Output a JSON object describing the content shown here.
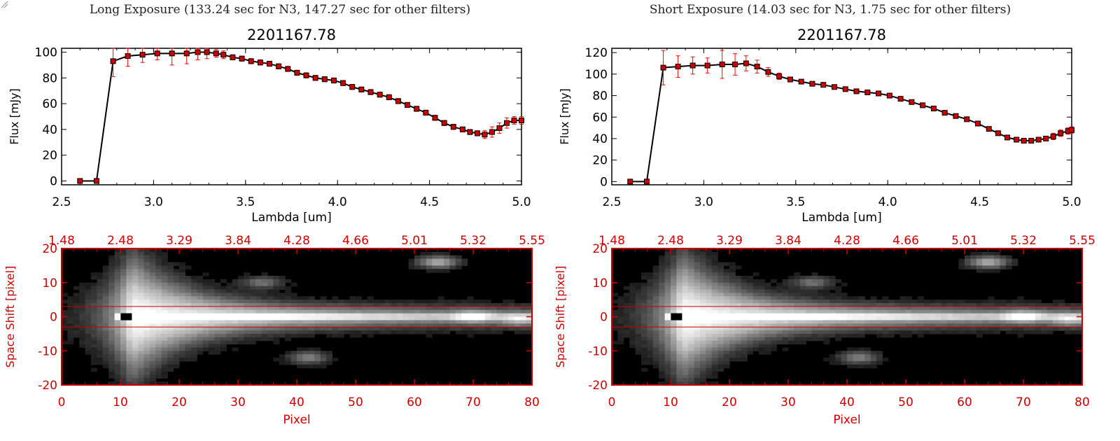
{
  "panels": [
    {
      "heading": "Long Exposure (133.24 sec for N3, 147.27 sec for other filters)",
      "plot_title": "2201167.78",
      "spectrum": {
        "type": "line",
        "xlabel": "Lambda [um]",
        "ylabel": "Flux [mJy]",
        "xlim": [
          2.5,
          5.0
        ],
        "ylim": [
          -3,
          103
        ],
        "xticks": [
          "2.5",
          "3.0",
          "3.5",
          "4.0",
          "4.5",
          "5.0"
        ],
        "yticks": [
          "0",
          "20",
          "40",
          "60",
          "80",
          "100"
        ],
        "ytick_values": [
          0,
          20,
          40,
          60,
          80,
          100
        ],
        "series": [
          {
            "color": "#000000",
            "marker_color": "#cc0000",
            "errorbar_color": "#ff0000",
            "x": [
              2.6,
              2.69,
              2.78,
              2.86,
              2.94,
              3.02,
              3.1,
              3.18,
              3.24,
              3.29,
              3.34,
              3.38,
              3.43,
              3.48,
              3.53,
              3.58,
              3.63,
              3.68,
              3.73,
              3.78,
              3.83,
              3.88,
              3.93,
              3.98,
              4.03,
              4.08,
              4.13,
              4.18,
              4.23,
              4.28,
              4.33,
              4.38,
              4.43,
              4.48,
              4.53,
              4.58,
              4.63,
              4.68,
              4.72,
              4.76,
              4.8,
              4.84,
              4.88,
              4.92,
              4.96,
              5.0
            ],
            "y": [
              0,
              0,
              93,
              97,
              98,
              99,
              99,
              99,
              100,
              100,
              99,
              98,
              96,
              95,
              93,
              92,
              91,
              89,
              87,
              84,
              82,
              80,
              79,
              78,
              76,
              73,
              71,
              69,
              67,
              65,
              62,
              59,
              56,
              53,
              49,
              45,
              42,
              40,
              38,
              37,
              36,
              38,
              41,
              45,
              47,
              47
            ],
            "yerr": [
              0,
              0,
              12,
              8,
              6,
              5,
              9,
              8,
              6,
              5,
              3,
              3,
              2,
              2,
              2,
              2,
              2,
              2,
              2,
              2,
              2,
              2,
              2,
              2,
              2,
              2,
              2,
              2,
              2,
              2,
              2,
              2,
              2,
              2,
              2,
              2,
              2,
              2,
              2,
              2,
              3,
              4,
              4,
              4,
              3,
              3
            ]
          }
        ]
      },
      "image": {
        "type": "heatmap",
        "xlabel": "Pixel",
        "ylabel": "Space Shift [pixel]",
        "xlim": [
          0,
          80
        ],
        "ylim": [
          -20,
          20
        ],
        "xticks": [
          "0",
          "10",
          "20",
          "30",
          "40",
          "50",
          "60",
          "70",
          "80"
        ],
        "yticks": [
          "-20",
          "-10",
          "0",
          "10",
          "20"
        ],
        "top_ticks": [
          "1.48",
          "2.48",
          "3.29",
          "3.84",
          "4.28",
          "4.66",
          "5.01",
          "5.32",
          "5.55"
        ],
        "aperture": [
          -3,
          3
        ],
        "axis_color": "#cc0000",
        "colormap": "grayscale",
        "features": [
          {
            "shape": "trace",
            "x_peak": 12,
            "y_center": 0,
            "value": 1.0
          },
          {
            "shape": "blob",
            "x": 64,
            "y": 16,
            "value": 0.6
          },
          {
            "shape": "blob",
            "x": 42,
            "y": -12,
            "value": 0.4
          },
          {
            "shape": "blob",
            "x": 34,
            "y": 10,
            "value": 0.35
          },
          {
            "shape": "blob",
            "x": 70,
            "y": 0,
            "value": 0.45
          },
          {
            "shape": "blob",
            "x": 78,
            "y": -1,
            "value": 0.4
          }
        ],
        "marker": {
          "x": 11,
          "y": 0,
          "color": "#000000"
        }
      }
    },
    {
      "heading": "Short Exposure (14.03 sec for N3, 1.75 sec for other filters)",
      "plot_title": "2201167.78",
      "spectrum": {
        "type": "line",
        "xlabel": "Lambda [um]",
        "ylabel": "Flux [mJy]",
        "xlim": [
          2.5,
          5.0
        ],
        "ylim": [
          -3,
          124
        ],
        "xticks": [
          "2.5",
          "3.0",
          "3.5",
          "4.0",
          "4.5",
          "5.0"
        ],
        "yticks": [
          "0",
          "20",
          "40",
          "60",
          "80",
          "100",
          "120"
        ],
        "ytick_values": [
          0,
          20,
          40,
          60,
          80,
          100,
          120
        ],
        "series": [
          {
            "color": "#000000",
            "marker_color": "#cc0000",
            "errorbar_color": "#ff0000",
            "x": [
              2.6,
              2.69,
              2.78,
              2.86,
              2.94,
              3.02,
              3.1,
              3.17,
              3.23,
              3.29,
              3.35,
              3.41,
              3.47,
              3.53,
              3.59,
              3.65,
              3.71,
              3.77,
              3.83,
              3.89,
              3.95,
              4.01,
              4.07,
              4.13,
              4.19,
              4.25,
              4.31,
              4.37,
              4.43,
              4.49,
              4.55,
              4.6,
              4.65,
              4.7,
              4.74,
              4.78,
              4.82,
              4.86,
              4.9,
              4.94,
              4.98,
              5.0
            ],
            "y": [
              0,
              0,
              106,
              107,
              108,
              108,
              109,
              109,
              110,
              107,
              102,
              98,
              95,
              93,
              91,
              90,
              88,
              86,
              84,
              83,
              82,
              80,
              77,
              74,
              71,
              68,
              64,
              61,
              58,
              54,
              49,
              45,
              41,
              39,
              38,
              38,
              39,
              40,
              42,
              45,
              47,
              48
            ],
            "yerr": [
              0,
              0,
              16,
              10,
              8,
              7,
              13,
              10,
              7,
              6,
              4,
              3,
              2,
              2,
              2,
              2,
              2,
              2,
              2,
              2,
              2,
              2,
              2,
              2,
              2,
              2,
              2,
              2,
              2,
              2,
              2,
              2,
              2,
              2,
              2,
              2,
              2,
              2,
              3,
              3,
              3,
              3
            ]
          }
        ]
      },
      "image": {
        "type": "heatmap",
        "xlabel": "Pixel",
        "ylabel": "Space Shift [pixel]",
        "xlim": [
          0,
          80
        ],
        "ylim": [
          -20,
          20
        ],
        "xticks": [
          "0",
          "10",
          "20",
          "30",
          "40",
          "50",
          "60",
          "70",
          "80"
        ],
        "yticks": [
          "-20",
          "-10",
          "0",
          "10",
          "20"
        ],
        "top_ticks": [
          "1.48",
          "2.48",
          "3.29",
          "3.84",
          "4.28",
          "4.66",
          "5.01",
          "5.32",
          "5.55"
        ],
        "aperture": [
          -3,
          3
        ],
        "axis_color": "#cc0000",
        "colormap": "grayscale",
        "features": [
          {
            "shape": "trace",
            "x_peak": 12,
            "y_center": 0,
            "value": 1.0
          },
          {
            "shape": "blob",
            "x": 64,
            "y": 16,
            "value": 0.6
          },
          {
            "shape": "blob",
            "x": 42,
            "y": -12,
            "value": 0.4
          },
          {
            "shape": "blob",
            "x": 34,
            "y": 10,
            "value": 0.35
          },
          {
            "shape": "blob",
            "x": 70,
            "y": 0,
            "value": 0.45
          },
          {
            "shape": "blob",
            "x": 78,
            "y": -1,
            "value": 0.4
          }
        ],
        "marker": {
          "x": 11,
          "y": 0,
          "color": "#000000"
        }
      }
    }
  ]
}
